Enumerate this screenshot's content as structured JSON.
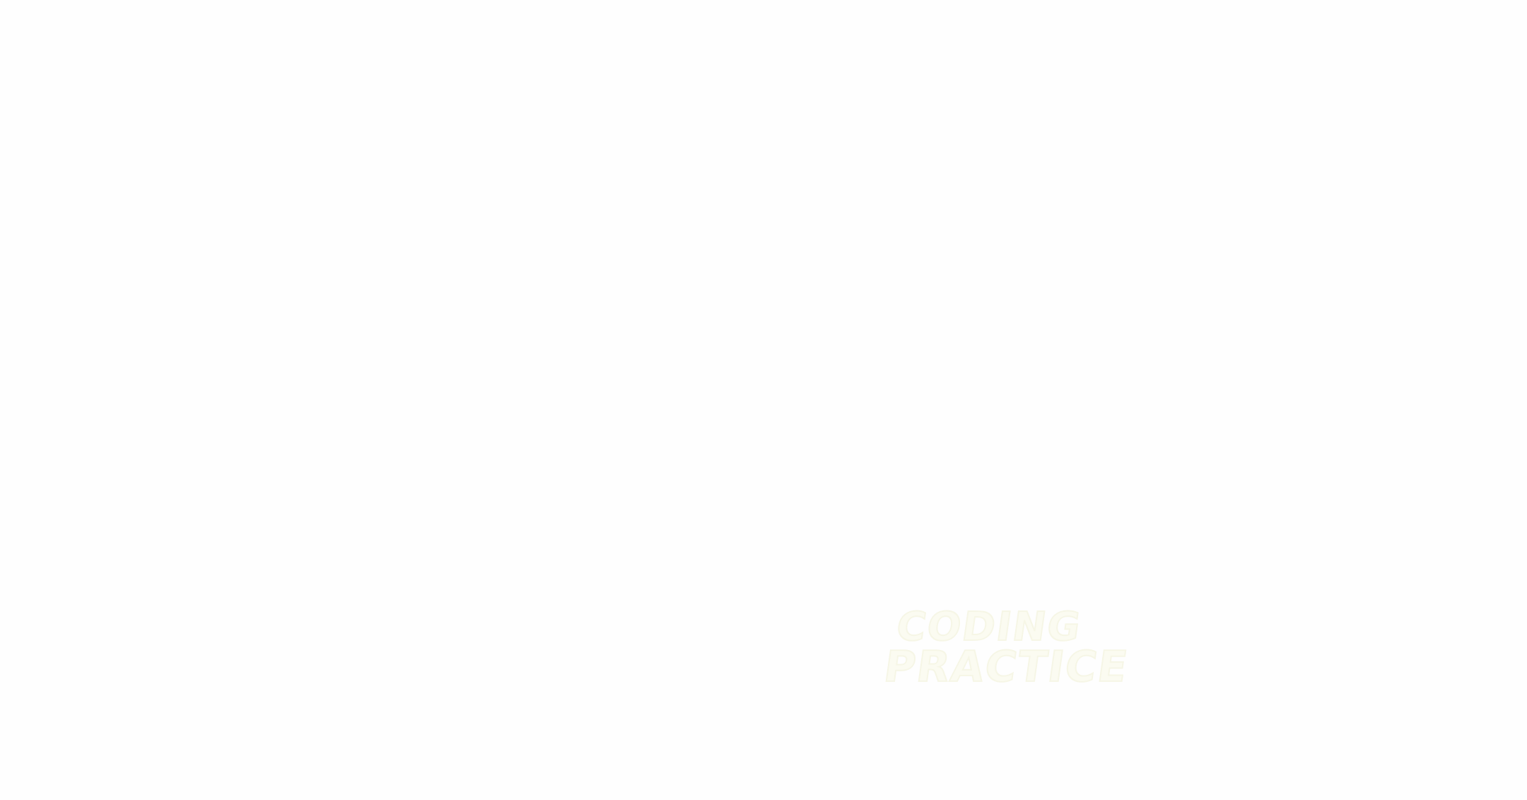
{
  "logo": {
    "line1": "CODING",
    "line2": "PRACTICE"
  },
  "colors": {
    "background": "#fefefe",
    "logo_fill": "#fbfbf1",
    "logo_stroke": "#f6f6e6"
  }
}
